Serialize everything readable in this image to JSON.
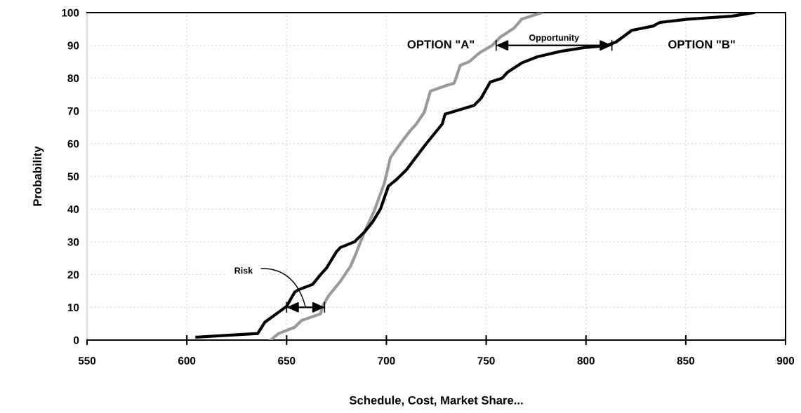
{
  "chart_data": {
    "type": "line",
    "xlabel": "Schedule, Cost, Market Share...",
    "ylabel": "Probability",
    "xlim": [
      550,
      900
    ],
    "xticks": [
      550,
      600,
      650,
      700,
      750,
      800,
      850,
      900
    ],
    "ylim": [
      0,
      100
    ],
    "yticks": [
      0,
      10,
      20,
      30,
      40,
      50,
      60,
      70,
      80,
      90,
      100
    ],
    "grid": true,
    "legend": false,
    "marker": "none",
    "line_style": "solid",
    "series": [
      {
        "color": "#999999",
        "x": [
          642,
          646,
          654,
          657.5,
          667,
          668,
          671,
          677,
          682,
          685,
          689,
          694,
          699,
          702,
          707,
          712,
          715,
          719,
          722,
          729,
          734,
          737,
          741.5,
          746.8,
          753,
          757,
          764,
          767,
          767.7,
          778
        ],
        "values": [
          0,
          2,
          3.9,
          6,
          8,
          10.3,
          13.5,
          18,
          22.5,
          26.8,
          33,
          39.6,
          48,
          55.7,
          60,
          64,
          66,
          69.6,
          76,
          77.5,
          78.5,
          83.9,
          85,
          87.8,
          90,
          92.5,
          95.3,
          97.4,
          98,
          100
        ]
      },
      {
        "color": "#000000",
        "x": [
          605,
          635.5,
          639,
          650,
          654,
          656,
          663,
          667,
          670,
          675,
          677,
          684,
          689,
          693,
          697,
          701,
          705,
          710,
          715,
          720,
          724,
          728,
          729.4,
          744,
          747.5,
          752,
          758,
          760.7,
          767.7,
          775.6,
          787.5,
          799,
          810,
          815,
          823,
          833.7,
          837,
          851,
          873,
          884
        ],
        "values": [
          0.9,
          2,
          5.4,
          10.3,
          14.6,
          15.4,
          17,
          20,
          22,
          27,
          28.3,
          30,
          33,
          36,
          40,
          47,
          49,
          52,
          56,
          60,
          63,
          66,
          69,
          71.7,
          73.9,
          78.8,
          80,
          81.8,
          84.6,
          86.5,
          88.2,
          89.3,
          89.9,
          91,
          94.6,
          95.9,
          97,
          98,
          98.9,
          100
        ]
      }
    ],
    "annotations": [
      "Risk",
      "Opportunity",
      "OPTION \"A\"",
      "OPTION \"B\""
    ]
  }
}
